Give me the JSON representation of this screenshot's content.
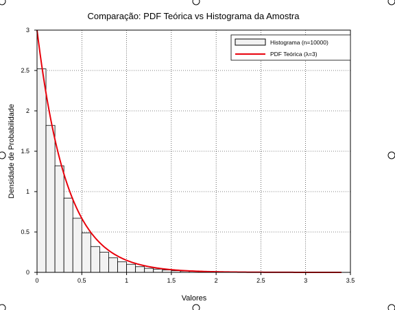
{
  "colors": {
    "hist_fill": "#f2f2f2",
    "hist_edge": "#000000",
    "pdf_line": "#e8000b",
    "grid": "#000000"
  },
  "chart_data": {
    "type": "bar",
    "title": "Comparação: PDF Teórica vs Histograma da Amostra",
    "xlabel": "Valores",
    "ylabel": "Densidade de Probabilidade",
    "xlim": [
      0,
      3.5
    ],
    "ylim": [
      0,
      3
    ],
    "xticks": [
      0,
      0.5,
      1,
      1.5,
      2,
      2.5,
      3,
      3.5
    ],
    "yticks": [
      0,
      0.5,
      1,
      1.5,
      2,
      2.5,
      3
    ],
    "grid": "on (dotted)",
    "legend_position": "top-right",
    "histogram": {
      "name": "Histograma (n=10000)",
      "bin_width": 0.1,
      "bin_start": 0.0,
      "values": [
        2.52,
        1.82,
        1.32,
        0.92,
        0.67,
        0.49,
        0.32,
        0.25,
        0.18,
        0.13,
        0.1,
        0.07,
        0.05,
        0.04,
        0.03,
        0.02,
        0.015,
        0.012,
        0.009,
        0.006,
        0.005,
        0.004,
        0.003,
        0.002
      ]
    },
    "series": [
      {
        "name": "PDF Teórica (λ=3)",
        "type": "line",
        "formula": "f(x) = 3·exp(-3x)",
        "lambda": 3,
        "x_range": [
          0,
          3.4
        ]
      }
    ]
  }
}
